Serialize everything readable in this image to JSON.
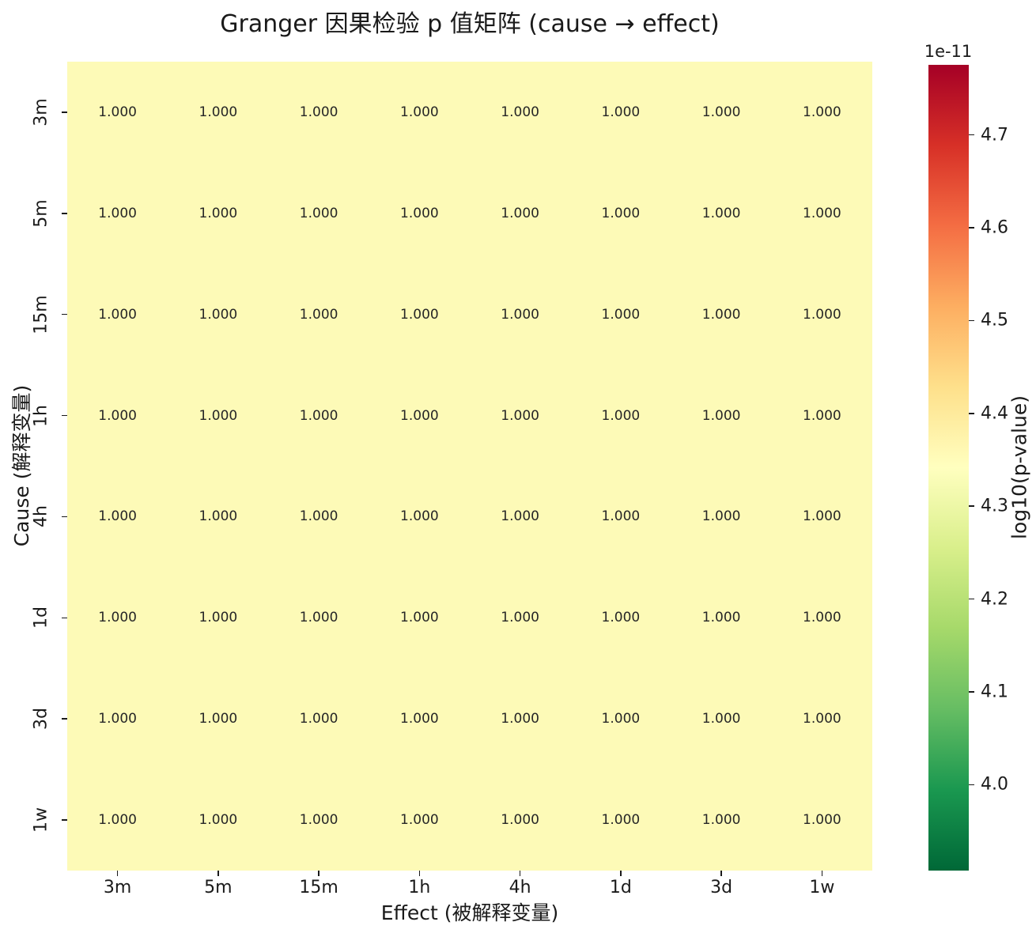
{
  "chart_data": {
    "type": "heatmap",
    "title": "Granger 因果检验 p 值矩阵 (cause → effect)",
    "xlabel": "Effect (被解释变量)",
    "ylabel": "Cause (解释变量)",
    "x_categories": [
      "3m",
      "5m",
      "15m",
      "1h",
      "4h",
      "1d",
      "3d",
      "1w"
    ],
    "y_categories": [
      "3m",
      "5m",
      "15m",
      "1h",
      "4h",
      "1d",
      "3d",
      "1w"
    ],
    "values": [
      [
        1.0,
        1.0,
        1.0,
        1.0,
        1.0,
        1.0,
        1.0,
        1.0
      ],
      [
        1.0,
        1.0,
        1.0,
        1.0,
        1.0,
        1.0,
        1.0,
        1.0
      ],
      [
        1.0,
        1.0,
        1.0,
        1.0,
        1.0,
        1.0,
        1.0,
        1.0
      ],
      [
        1.0,
        1.0,
        1.0,
        1.0,
        1.0,
        1.0,
        1.0,
        1.0
      ],
      [
        1.0,
        1.0,
        1.0,
        1.0,
        1.0,
        1.0,
        1.0,
        1.0
      ],
      [
        1.0,
        1.0,
        1.0,
        1.0,
        1.0,
        1.0,
        1.0,
        1.0
      ],
      [
        1.0,
        1.0,
        1.0,
        1.0,
        1.0,
        1.0,
        1.0,
        1.0
      ],
      [
        1.0,
        1.0,
        1.0,
        1.0,
        1.0,
        1.0,
        1.0,
        1.0
      ]
    ],
    "annotation_decimals": 3,
    "annotation_text_example": "1.000",
    "cell_color": "#fdfab7",
    "annotation_color": "#262626",
    "grid": false,
    "colorbar": {
      "offset_label": "1e-11",
      "label": "log10(p-value)",
      "ticks": [
        4.7,
        4.6,
        4.5,
        4.4,
        4.3,
        4.2,
        4.1,
        4.0
      ],
      "colormap": "RdYlGn reversed (red = high, green = low)",
      "gradient_stops_top_to_bottom": [
        "#a50026",
        "#d73027",
        "#f46d43",
        "#fdae61",
        "#fee08b",
        "#ffffbf",
        "#d9ef8b",
        "#a6d96a",
        "#66bd63",
        "#1a9850",
        "#006837"
      ]
    }
  }
}
